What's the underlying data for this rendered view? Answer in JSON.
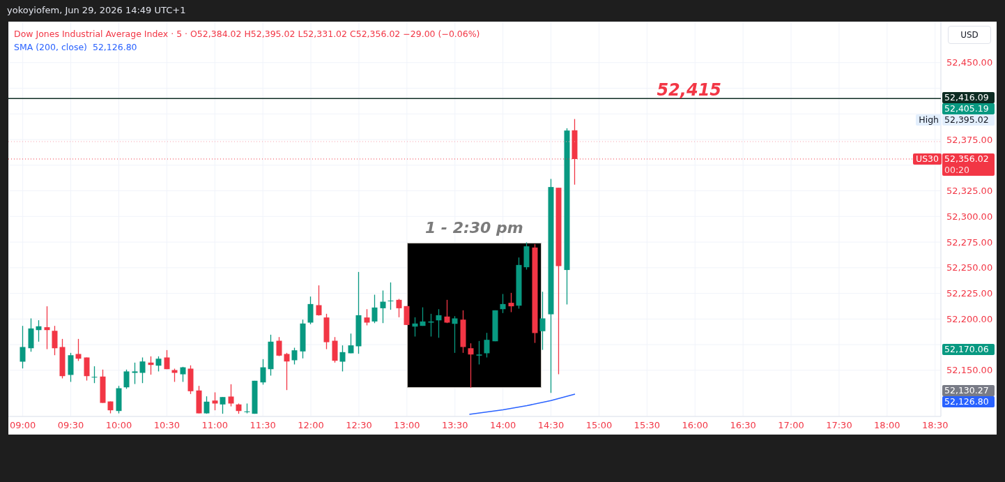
{
  "chart_data": {
    "type": "candlestick",
    "title": "Dow Jones Industrial Average Index · 5 · O52,384.02  H52,395.02  L52,331.02  C52,356.02  −29.00 (−0.06%)",
    "x": [
      9,
      9.0833,
      9.1667,
      9.25,
      9.3333,
      9.4167,
      9.5,
      9.5833,
      9.6667,
      9.75,
      9.8333,
      9.9167,
      10,
      10.0833,
      10.1667,
      10.25,
      10.3333,
      10.4167,
      10.5,
      10.5833,
      10.6667,
      10.75,
      10.8333,
      10.9167,
      11,
      11.0833,
      11.1667,
      11.25,
      11.3333,
      11.4167,
      11.5,
      11.5833,
      11.6667,
      11.75,
      11.8333,
      11.9167,
      12,
      12.0833,
      12.1667,
      12.25,
      12.3333,
      12.4167,
      12.5,
      12.5833,
      12.6667,
      12.75,
      12.8333,
      12.9167,
      13,
      13.0833,
      13.1667,
      13.25,
      13.3333,
      13.4167,
      13.5,
      13.5833,
      13.6667,
      13.75,
      13.8333,
      13.9167,
      14,
      14.0833,
      14.1667,
      14.25,
      14.3333,
      14.4167,
      14.5,
      14.5833,
      14.6667,
      14.75
    ],
    "ohlc": [
      [
        52158.4,
        52193.3,
        52151.8,
        52172.7
      ],
      [
        52171.5,
        52200.6,
        52168.1,
        52190.8
      ],
      [
        52189.2,
        52198.8,
        52177.9,
        52192.9
      ],
      [
        52192.0,
        52212.4,
        52170.6,
        52189.2
      ],
      [
        52188.5,
        52193.3,
        52164.7,
        52171.5
      ],
      [
        52172.7,
        52180.6,
        52142.1,
        52144.3
      ],
      [
        52145.5,
        52167.0,
        52138.7,
        52164.7
      ],
      [
        52165.9,
        52180.6,
        52159.1,
        52161.3
      ],
      [
        52162.5,
        52162.5,
        52140.0,
        52144.3
      ],
      [
        52143.0,
        52153.9,
        52137.5,
        52143.6
      ],
      [
        52143.9,
        52150.7,
        52118.2,
        52118.2
      ],
      [
        52119.6,
        52119.6,
        52108.0,
        52111.0
      ],
      [
        52110.3,
        52134.8,
        52108.0,
        52132.5
      ],
      [
        52133.4,
        52150.7,
        52131.9,
        52148.9
      ],
      [
        52147.5,
        52157.5,
        52136.6,
        52148.9
      ],
      [
        52147.5,
        52162.5,
        52137.5,
        52158.6
      ],
      [
        52157.5,
        52163.6,
        52145.7,
        52155.2
      ],
      [
        52154.5,
        52163.6,
        52148.9,
        52161.3
      ],
      [
        52162.5,
        52169.7,
        52151.1,
        52151.1
      ],
      [
        52150.2,
        52151.6,
        52138.7,
        52147.5
      ],
      [
        52146.1,
        52153.4,
        52138.7,
        52152.9
      ],
      [
        52151.6,
        52154.8,
        52126.9,
        52129.6
      ],
      [
        52130.3,
        52134.8,
        52108.0,
        52108.0
      ],
      [
        52108.0,
        52124.6,
        52107.6,
        52119.4
      ],
      [
        52120.5,
        52128.5,
        52111.0,
        52117.6
      ],
      [
        52116.7,
        52123.9,
        52107.6,
        52123.9
      ],
      [
        52124.4,
        52136.4,
        52114.8,
        52117.6
      ],
      [
        52116.7,
        52117.6,
        52107.6,
        52110.3
      ],
      [
        52109.2,
        52117.6,
        52108.0,
        52109.9
      ],
      [
        52107.6,
        52139.8,
        52107.6,
        52139.8
      ],
      [
        52138.2,
        52160.9,
        52136.0,
        52152.9
      ],
      [
        52151.1,
        52184.7,
        52144.8,
        52177.9
      ],
      [
        52178.8,
        52182.4,
        52163.8,
        52164.3
      ],
      [
        52165.9,
        52167.0,
        52130.7,
        52158.6
      ],
      [
        52159.8,
        52172.0,
        52155.7,
        52169.5
      ],
      [
        52168.4,
        52199.4,
        52161.6,
        52195.6
      ],
      [
        52196.5,
        52221.9,
        52194.9,
        52214.6
      ],
      [
        52213.5,
        52232.8,
        52203.3,
        52203.7
      ],
      [
        52201.5,
        52205.1,
        52170.6,
        52177.4
      ],
      [
        52178.8,
        52182.4,
        52157.5,
        52159.3
      ],
      [
        52158.4,
        52174.3,
        52148.9,
        52167.7
      ],
      [
        52166.6,
        52185.8,
        52166.6,
        52174.3
      ],
      [
        52173.4,
        52245.9,
        52166.1,
        52203.7
      ],
      [
        52201.5,
        52209.6,
        52193.8,
        52196.5
      ],
      [
        52197.6,
        52223.7,
        52196.0,
        52211.2
      ],
      [
        52210.5,
        52227.8,
        52196.0,
        52216.9
      ],
      [
        52217.6,
        52235.7,
        52209.0,
        52218.0
      ],
      [
        52218.7,
        52219.6,
        52201.7,
        52210.5
      ],
      [
        52212.6,
        52212.6,
        52194.2,
        52194.2
      ],
      [
        52192.6,
        52201.7,
        52182.9,
        52195.6
      ],
      [
        52193.3,
        52211.4,
        52193.3,
        52197.6
      ],
      [
        52196.5,
        52205.1,
        52182.9,
        52197.6
      ],
      [
        52198.7,
        52209.6,
        52181.7,
        52203.7
      ],
      [
        52202.4,
        52218.7,
        52196.0,
        52196.5
      ],
      [
        52195.3,
        52202.8,
        52167.0,
        52200.6
      ],
      [
        52199.4,
        52208.5,
        52167.0,
        52172.7
      ],
      [
        52171.5,
        52176.3,
        52133.0,
        52165.4
      ],
      [
        52164.3,
        52178.6,
        52155.7,
        52165.4
      ],
      [
        52166.6,
        52186.5,
        52162.5,
        52179.7
      ],
      [
        52178.3,
        52208.5,
        52178.3,
        52208.5
      ],
      [
        52209.6,
        52224.4,
        52205.8,
        52214.6
      ],
      [
        52215.8,
        52225.5,
        52206.7,
        52212.4
      ],
      [
        52213.0,
        52260.0,
        52210.1,
        52252.7
      ],
      [
        52250.5,
        52274.7,
        52248.2,
        52270.9
      ],
      [
        52269.7,
        52273.1,
        52176.7,
        52186.3
      ],
      [
        52188.1,
        52226.6,
        52169.9,
        52200.6
      ],
      [
        52204.6,
        52336.6,
        52128.0,
        52328.7
      ],
      [
        52328.0,
        52328.0,
        52146.1,
        52251.6
      ],
      [
        52247.8,
        52386.0,
        52214.2,
        52383.8
      ],
      [
        52384.02,
        52395.02,
        52331.02,
        52356.02
      ]
    ],
    "series": [
      {
        "name": "SMA (200, close)",
        "type": "line",
        "color": "#2962ff",
        "x": [
          13.65,
          14,
          14.25,
          14.5,
          14.75
        ],
        "values": [
          52107,
          52111.5,
          52115.5,
          52120.5,
          52126.8
        ]
      }
    ],
    "xlim": [
      8.85,
      18.56
    ],
    "xticks": [
      {
        "value": 9,
        "label": "09:00"
      },
      {
        "value": 9.5,
        "label": "09:30"
      },
      {
        "value": 10,
        "label": "10:00"
      },
      {
        "value": 10.5,
        "label": "10:30"
      },
      {
        "value": 11,
        "label": "11:00"
      },
      {
        "value": 11.5,
        "label": "11:30"
      },
      {
        "value": 12,
        "label": "12:00"
      },
      {
        "value": 12.5,
        "label": "12:30"
      },
      {
        "value": 13,
        "label": "13:00"
      },
      {
        "value": 13.5,
        "label": "13:30"
      },
      {
        "value": 14,
        "label": "14:00"
      },
      {
        "value": 14.5,
        "label": "14:30"
      },
      {
        "value": 15,
        "label": "15:00"
      },
      {
        "value": 15.5,
        "label": "15:30"
      },
      {
        "value": 16,
        "label": "16:00"
      },
      {
        "value": 16.5,
        "label": "16:30"
      },
      {
        "value": 17,
        "label": "17:00"
      },
      {
        "value": 17.5,
        "label": "17:30"
      },
      {
        "value": 18,
        "label": "18:00"
      },
      {
        "value": 18.5,
        "label": "18:30"
      }
    ],
    "ylim": [
      52105,
      52490
    ],
    "yticks": [
      {
        "value": 52150,
        "label": "52,150.00"
      },
      {
        "value": 52175,
        "label": null
      },
      {
        "value": 52200,
        "label": "52,200.00"
      },
      {
        "value": 52225,
        "label": "52,225.00"
      },
      {
        "value": 52250,
        "label": "52,250.00"
      },
      {
        "value": 52275,
        "label": "52,275.00"
      },
      {
        "value": 52300,
        "label": "52,300.00"
      },
      {
        "value": 52325,
        "label": "52,325.00"
      },
      {
        "value": 52350,
        "label": null
      },
      {
        "value": 52375,
        "label": "52,375.00"
      },
      {
        "value": 52400,
        "label": null
      },
      {
        "value": 52425,
        "label": null
      },
      {
        "value": 52450,
        "label": "52,450.00"
      }
    ],
    "grid": true,
    "legend": "top left",
    "ref_lines": [
      {
        "axis": "y",
        "value": 52415,
        "label": "52,415",
        "color": "#0d2b22",
        "line_style": "solid"
      },
      {
        "axis": "y",
        "value": 52373,
        "color": "#f7a1ad",
        "line_style": "dotted"
      },
      {
        "axis": "y",
        "value": 52356.02,
        "color": "#f23645",
        "line_style": "dotted"
      }
    ],
    "bands": [
      {
        "axis": "x",
        "from": 13,
        "to": 14.4,
        "label": "1 - 2:30 pm",
        "color": "#000000"
      }
    ],
    "annotations": [
      {
        "text": "yokoyiofem, Jun 29, 2026 14:49 UTC+1"
      },
      {
        "text": "USD"
      },
      "52,416.09",
      "52,405.19",
      "High",
      "52,395.02",
      "US30",
      "52,356.02",
      "00:20",
      "52,170.06",
      "52,130.27",
      "52,126.80"
    ]
  }
}
